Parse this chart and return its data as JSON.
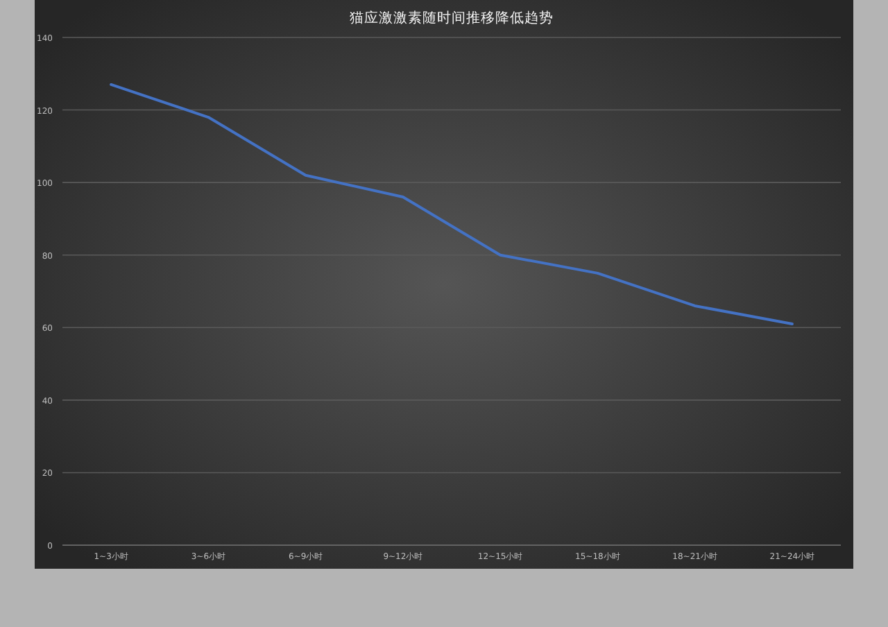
{
  "chart_data": {
    "type": "line",
    "title": "猫应激激素随时间推移降低趋势",
    "categories": [
      "1~3小时",
      "3~6小时",
      "6~9小时",
      "9~12小时",
      "12~15小时",
      "15~18小时",
      "18~21小时",
      "21~24小时"
    ],
    "series": [
      {
        "color": "#4472c4",
        "values": [
          127,
          118,
          102,
          96,
          80,
          75,
          66,
          61
        ]
      }
    ],
    "ylim": [
      0,
      140
    ],
    "yticks": [
      0,
      20,
      40,
      60,
      80,
      100,
      120,
      140
    ],
    "grid": "y",
    "marker": "none",
    "line_style": "solid"
  }
}
